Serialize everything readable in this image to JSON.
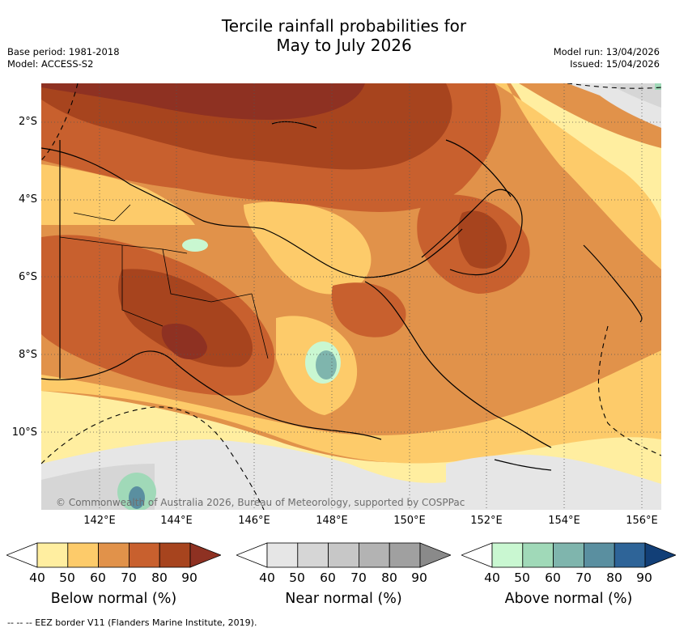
{
  "header": {
    "title_line1": "Tercile rainfall probabilities for",
    "title_line2": "May to July 2026",
    "base_period": "Base period: 1981-2018",
    "model": "Model: ACCESS-S2",
    "model_run": "Model run: 13/04/2026",
    "issued": "Issued: 15/04/2026"
  },
  "map": {
    "region": "Papua New Guinea",
    "lat_ticks": [
      "2°S",
      "4°S",
      "6°S",
      "8°S",
      "10°S"
    ],
    "lon_ticks": [
      "142°E",
      "144°E",
      "146°E",
      "148°E",
      "150°E",
      "152°E",
      "154°E",
      "156°E"
    ],
    "lat_range": [
      -12,
      -1
    ],
    "lon_range": [
      140.5,
      156.5
    ],
    "copyright": "© Commonwealth of Australia 2026, Bureau of Meteorology, supported by COSPPac",
    "eez_note": "-- -- -- EEZ border V11 (Flanders Marine Institute, 2019)."
  },
  "legends": [
    {
      "label": "Below normal (%)",
      "ticks": [
        "40",
        "50",
        "60",
        "70",
        "80",
        "90"
      ],
      "colors": [
        "#ffeea0",
        "#fdcb6a",
        "#e1924a",
        "#c8602e",
        "#a7441e",
        "#8e3122"
      ]
    },
    {
      "label": "Near normal (%)",
      "ticks": [
        "40",
        "50",
        "60",
        "70",
        "80",
        "90"
      ],
      "colors": [
        "#e6e6e6",
        "#d6d6d6",
        "#c7c7c7",
        "#b3b3b3",
        "#a0a0a0",
        "#8a8a8a"
      ]
    },
    {
      "label": "Above normal (%)",
      "ticks": [
        "40",
        "50",
        "60",
        "70",
        "80",
        "90"
      ],
      "colors": [
        "#c9f7d1",
        "#a0d9b8",
        "#7fb5ad",
        "#5a8fa0",
        "#2e6498",
        "#123f77"
      ]
    }
  ]
}
